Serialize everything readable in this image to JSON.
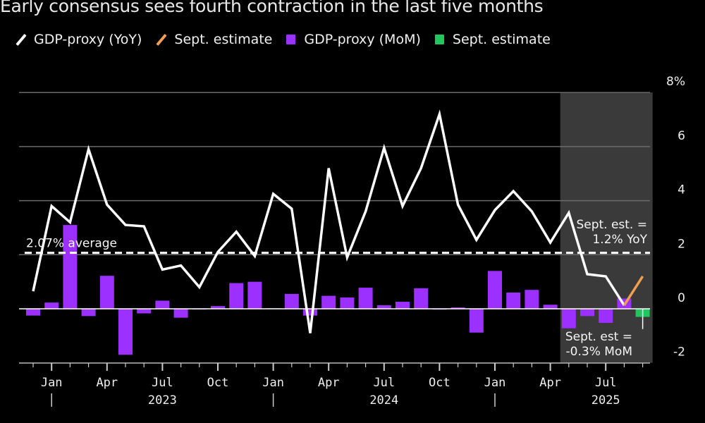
{
  "chart_data": {
    "type": "bar+line",
    "title": "Early consensus sees fourth contraction in the last five months",
    "legend": [
      {
        "label": "GDP-proxy (YoY)",
        "kind": "line",
        "color": "#ffffff"
      },
      {
        "label": "Sept. estimate",
        "kind": "line",
        "color": "#f0a050"
      },
      {
        "label": "GDP-proxy (MoM)",
        "kind": "bar",
        "color": "#9b30ff"
      },
      {
        "label": "Sept. estimate",
        "kind": "bar",
        "color": "#22c55e"
      }
    ],
    "legend_position": "top-left",
    "x": [
      "2022-12",
      "2023-01",
      "2023-02",
      "2023-03",
      "2023-04",
      "2023-05",
      "2023-06",
      "2023-07",
      "2023-08",
      "2023-09",
      "2023-10",
      "2023-11",
      "2023-12",
      "2024-01",
      "2024-02",
      "2024-03",
      "2024-04",
      "2024-05",
      "2024-06",
      "2024-07",
      "2024-08",
      "2024-09",
      "2024-10",
      "2024-11",
      "2024-12",
      "2025-01",
      "2025-02",
      "2025-03",
      "2025-04",
      "2025-05",
      "2025-06",
      "2025-07",
      "2025-08",
      "2025-09"
    ],
    "series": [
      {
        "name": "GDP-proxy (YoY)",
        "type": "line",
        "color": "#ffffff",
        "values": [
          0.65,
          3.8,
          3.2,
          5.9,
          3.85,
          3.1,
          3.05,
          1.45,
          1.6,
          0.8,
          2.1,
          2.85,
          1.95,
          4.25,
          3.7,
          -0.9,
          5.2,
          1.9,
          3.6,
          5.95,
          3.8,
          5.2,
          7.2,
          3.85,
          2.55,
          3.65,
          4.35,
          3.6,
          2.45,
          3.55,
          1.28,
          1.2,
          0.13,
          null
        ]
      },
      {
        "name": "Sept. estimate (YoY)",
        "type": "line",
        "color": "#f0a050",
        "points": [
          [
            "2025-08",
            0.13
          ],
          [
            "2025-09",
            1.2
          ]
        ]
      },
      {
        "name": "GDP-proxy (MoM)",
        "type": "bar",
        "color": "#9b30ff",
        "values": [
          -0.25,
          0.23,
          3.1,
          -0.27,
          1.22,
          -1.7,
          -0.17,
          0.3,
          -0.33,
          0.0,
          0.1,
          0.95,
          1.0,
          0.02,
          0.55,
          -0.25,
          0.48,
          0.42,
          0.78,
          0.13,
          0.26,
          0.76,
          -0.03,
          0.05,
          -0.88,
          1.4,
          0.6,
          0.7,
          0.15,
          -0.72,
          -0.27,
          -0.52,
          0.38,
          null
        ]
      },
      {
        "name": "Sept. estimate (MoM)",
        "type": "bar",
        "color": "#22c55e",
        "points": [
          [
            "2025-09",
            -0.3
          ]
        ]
      }
    ],
    "average_line": {
      "value": 2.07,
      "label": "2.07% average"
    },
    "highlight_range": [
      "2025-05",
      "2025-09"
    ],
    "annotations": [
      {
        "lines": [
          "Sept. est. =",
          "1.2% YoY"
        ]
      },
      {
        "lines": [
          "Sept. est =",
          "-0.3% MoM"
        ]
      }
    ],
    "y_axis": {
      "position": "right",
      "ticks": [
        8,
        6,
        4,
        2,
        0,
        -2
      ],
      "tick_labels": [
        "8%",
        "6",
        "4",
        "2",
        "0",
        "-2"
      ],
      "ylim": [
        -2,
        8
      ]
    },
    "x_axis": {
      "month_labels": [
        {
          "label": "Jan",
          "at": "2023-01"
        },
        {
          "label": "Apr",
          "at": "2023-04"
        },
        {
          "label": "Jul",
          "at": "2023-07"
        },
        {
          "label": "Oct",
          "at": "2023-10"
        },
        {
          "label": "Jan",
          "at": "2024-01"
        },
        {
          "label": "Apr",
          "at": "2024-04"
        },
        {
          "label": "Jul",
          "at": "2024-07"
        },
        {
          "label": "Oct",
          "at": "2024-10"
        },
        {
          "label": "Jan",
          "at": "2025-01"
        },
        {
          "label": "Apr",
          "at": "2025-04"
        },
        {
          "label": "Jul",
          "at": "2025-07"
        }
      ],
      "year_labels": [
        {
          "label": "2023",
          "at": "2023-07"
        },
        {
          "label": "2024",
          "at": "2024-07"
        },
        {
          "label": "2025",
          "at": "2025-07"
        }
      ],
      "year_separators": [
        "2023-01",
        "2024-01",
        "2025-01"
      ]
    },
    "grid": true
  }
}
